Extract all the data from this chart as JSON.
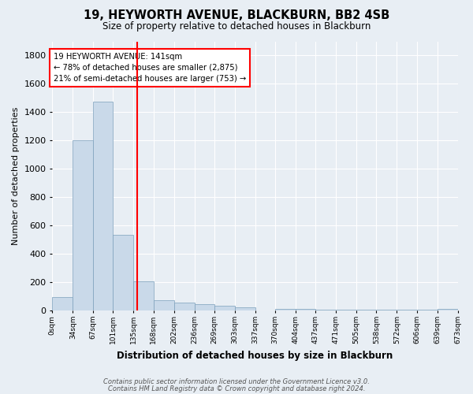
{
  "title": "19, HEYWORTH AVENUE, BLACKBURN, BB2 4SB",
  "subtitle": "Size of property relative to detached houses in Blackburn",
  "xlabel": "Distribution of detached houses by size in Blackburn",
  "ylabel": "Number of detached properties",
  "bin_edges": [
    0,
    34,
    67,
    101,
    135,
    168,
    202,
    236,
    269,
    303,
    337,
    370,
    404,
    437,
    471,
    505,
    538,
    572,
    606,
    639,
    673
  ],
  "bar_heights": [
    95,
    1200,
    1475,
    535,
    205,
    75,
    55,
    45,
    35,
    25,
    0,
    15,
    10,
    5,
    5,
    5,
    5,
    5,
    5,
    15
  ],
  "bar_color": "#c9d9e9",
  "bar_edge_color": "#7ca0bb",
  "property_size": 141,
  "vline_color": "red",
  "annotation_line1": "19 HEYWORTH AVENUE: 141sqm",
  "annotation_line2": "← 78% of detached houses are smaller (2,875)",
  "annotation_line3": "21% of semi-detached houses are larger (753) →",
  "annotation_box_color": "white",
  "annotation_box_edge": "red",
  "ylim": [
    0,
    1900
  ],
  "yticks": [
    0,
    200,
    400,
    600,
    800,
    1000,
    1200,
    1400,
    1600,
    1800
  ],
  "background_color": "#e8eef4",
  "grid_color": "white",
  "footer_text": "Contains HM Land Registry data © Crown copyright and database right 2024.\nContains public sector information licensed under the public sector information licensed under the Government Licence v3.0.",
  "footer_line1": "Contains HM Land Registry data © Crown copyright and database right 2024.",
  "footer_line2": "Contains public sector information licensed under the Government Licence v3.0.",
  "tick_labels": [
    "0sqm",
    "34sqm",
    "67sqm",
    "101sqm",
    "135sqm",
    "168sqm",
    "202sqm",
    "236sqm",
    "269sqm",
    "303sqm",
    "337sqm",
    "370sqm",
    "404sqm",
    "437sqm",
    "471sqm",
    "505sqm",
    "538sqm",
    "572sqm",
    "606sqm",
    "639sqm",
    "673sqm"
  ]
}
